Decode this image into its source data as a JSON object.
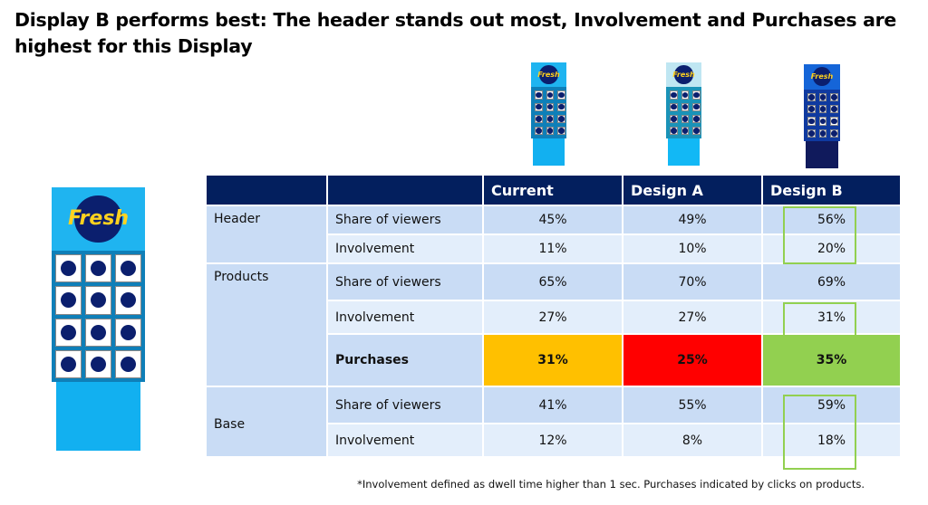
{
  "title": "Display B performs best: The header stands out most, Involvement and Purchases are highest for this Display",
  "displays": {
    "logo_text": "Fresh",
    "labels": [
      "Current",
      "Design A",
      "Design B"
    ]
  },
  "table": {
    "columns": [
      "",
      "",
      "Current",
      "Design A",
      "Design B"
    ],
    "groups": [
      {
        "name": "Header",
        "rows": [
          {
            "metric": "Share of viewers",
            "values": [
              "45%",
              "49%",
              "56%"
            ]
          },
          {
            "metric": "Involvement",
            "values": [
              "11%",
              "10%",
              "20%"
            ]
          }
        ]
      },
      {
        "name": "Products",
        "rows": [
          {
            "metric": "Share of viewers",
            "values": [
              "65%",
              "70%",
              "69%"
            ]
          },
          {
            "metric": "Involvement",
            "values": [
              "27%",
              "27%",
              "31%"
            ]
          },
          {
            "metric": "Purchases",
            "values": [
              "31%",
              "25%",
              "35%"
            ]
          }
        ]
      },
      {
        "name": "Base",
        "rows": [
          {
            "metric": "Share of viewers",
            "values": [
              "41%",
              "55%",
              "59%"
            ]
          },
          {
            "metric": "Involvement",
            "values": [
              "12%",
              "8%",
              "18%"
            ]
          }
        ]
      }
    ],
    "purchase_colors": [
      "#ffc000",
      "#ff0000",
      "#92d050"
    ],
    "highlight_color": "#92d050"
  },
  "footnote": "*Involvement defined as dwell time higher than 1 sec. Purchases indicated by clicks on products."
}
